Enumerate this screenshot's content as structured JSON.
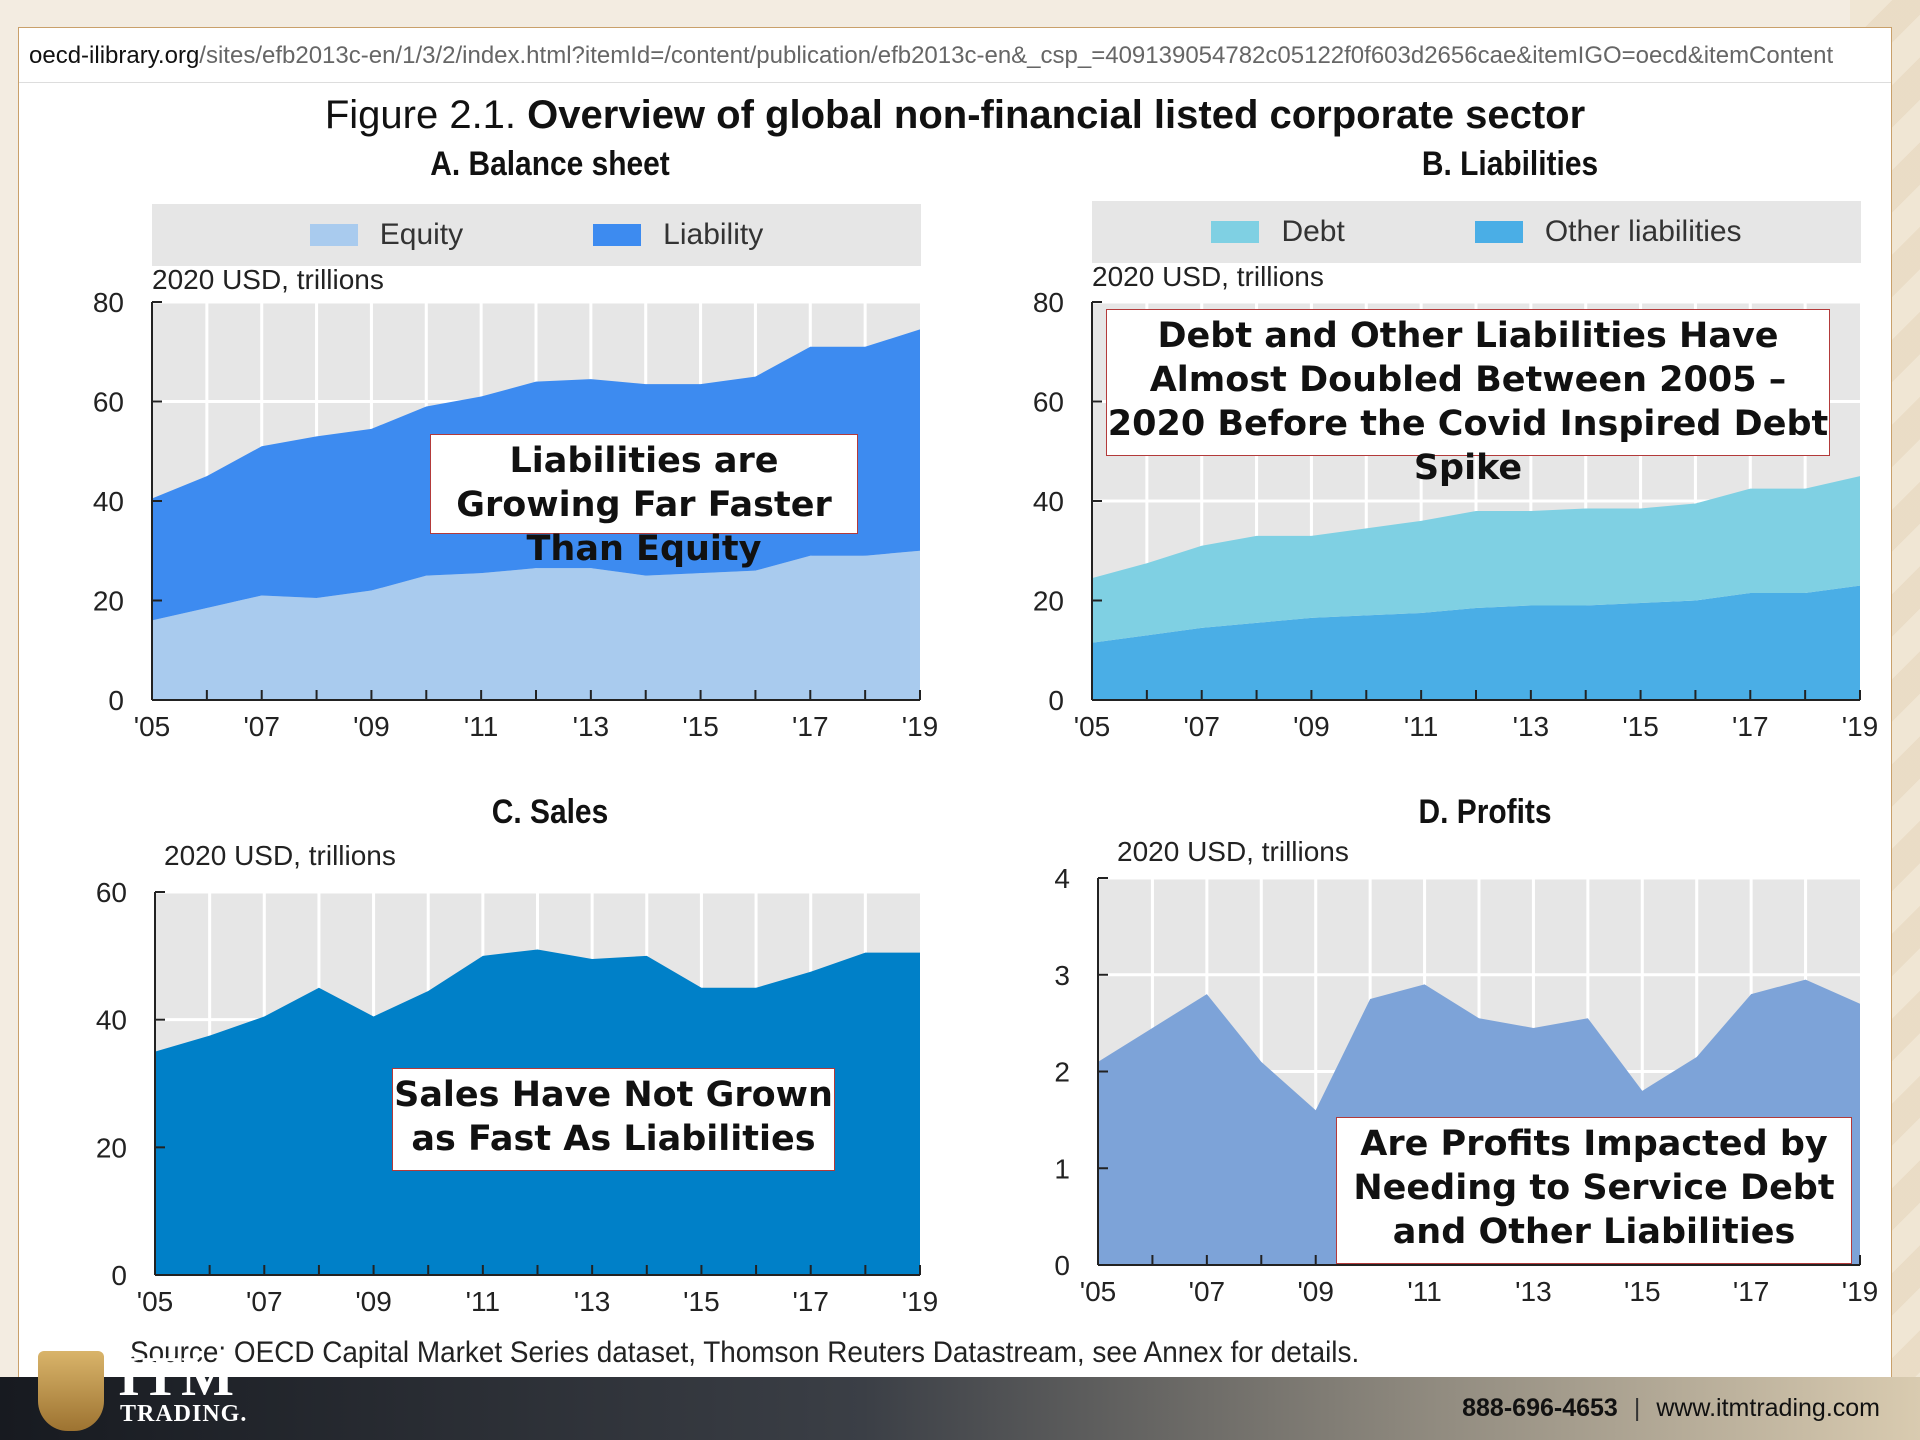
{
  "browser": {
    "url_host": "oecd-ilibrary.org",
    "url_path": "/sites/efb2013c-en/1/3/2/index.html?itemId=/content/publication/efb2013c-en&_csp_=409139054782c05122f0f603d2656cae&itemIGO=oecd&itemContent"
  },
  "figure": {
    "title_prefix": "Figure 2.1. ",
    "title_bold": "Overview of global non-financial listed corporate sector",
    "source": "Source: OECD Capital Market Series dataset, Thomson Reuters Datastream, see Annex for details."
  },
  "panels": {
    "a": {
      "title": "A. Balance sheet",
      "unit": "2020 USD, trillions",
      "legend": [
        {
          "label": "Equity",
          "color": "#a9cbee"
        },
        {
          "label": "Liability",
          "color": "#3d8bf0"
        }
      ],
      "callout": "Liabilities are Growing Far Faster Than Equity"
    },
    "b": {
      "title": "B. Liabilities",
      "unit": "2020 USD, trillions",
      "legend": [
        {
          "label": "Debt",
          "color": "#7fd0e3"
        },
        {
          "label": "Other liabilities",
          "color": "#4aaee6"
        }
      ],
      "callout": "Debt and Other Liabilities Have Almost Doubled Between 2005 – 2020 Before the Covid Inspired Debt Spike"
    },
    "c": {
      "title": "C. Sales",
      "unit": "2020 USD, trillions",
      "callout": "Sales Have Not Grown as Fast As Liabilities"
    },
    "d": {
      "title": "D. Profits",
      "unit": "2020 USD, trillions",
      "callout": "Are Profits Impacted by Needing to Service Debt and Other Liabilities"
    }
  },
  "chart_data": [
    {
      "id": "a",
      "type": "area",
      "stacked": true,
      "title": "A. Balance sheet",
      "ylabel": "2020 USD, trillions",
      "x": [
        2005,
        2006,
        2007,
        2008,
        2009,
        2010,
        2011,
        2012,
        2013,
        2014,
        2015,
        2016,
        2017,
        2018,
        2019
      ],
      "tick_labels": [
        "'05",
        "'07",
        "'09",
        "'11",
        "'13",
        "'15",
        "'17",
        "'19"
      ],
      "ylim": [
        0,
        80
      ],
      "yticks": [
        0,
        20,
        40,
        60,
        80
      ],
      "grid": true,
      "legend_position": "top",
      "series": [
        {
          "name": "Equity",
          "color": "#a9cbee",
          "values": [
            16,
            18.5,
            21,
            20.5,
            22,
            25,
            25.5,
            26.5,
            26.5,
            25,
            25.5,
            26,
            29,
            29,
            30
          ]
        },
        {
          "name": "Liability",
          "color": "#3d8bf0",
          "values": [
            24.5,
            26.5,
            30,
            32.5,
            32.5,
            34,
            35.5,
            37.5,
            38,
            38.5,
            38,
            39,
            42,
            42,
            44.5
          ]
        }
      ]
    },
    {
      "id": "b",
      "type": "area",
      "stacked": true,
      "title": "B. Liabilities",
      "ylabel": "2020 USD, trillions",
      "x": [
        2005,
        2006,
        2007,
        2008,
        2009,
        2010,
        2011,
        2012,
        2013,
        2014,
        2015,
        2016,
        2017,
        2018,
        2019
      ],
      "tick_labels": [
        "'05",
        "'07",
        "'09",
        "'11",
        "'13",
        "'15",
        "'17",
        "'19"
      ],
      "ylim": [
        0,
        80
      ],
      "yticks": [
        0,
        20,
        40,
        60,
        80
      ],
      "grid": true,
      "legend_position": "top",
      "series": [
        {
          "name": "Other liabilities",
          "color": "#4aaee6",
          "values": [
            11.5,
            13,
            14.5,
            15.5,
            16.5,
            17,
            17.5,
            18.5,
            19,
            19,
            19.5,
            20,
            21.5,
            21.5,
            23
          ]
        },
        {
          "name": "Debt",
          "color": "#7fd0e3",
          "values": [
            13,
            14.5,
            16.5,
            17.5,
            16.5,
            17.5,
            18.5,
            19.5,
            19,
            19.5,
            19,
            19.5,
            21,
            21,
            22
          ]
        }
      ]
    },
    {
      "id": "c",
      "type": "area",
      "title": "C. Sales",
      "ylabel": "2020 USD, trillions",
      "x": [
        2005,
        2006,
        2007,
        2008,
        2009,
        2010,
        2011,
        2012,
        2013,
        2014,
        2015,
        2016,
        2017,
        2018,
        2019
      ],
      "tick_labels": [
        "'05",
        "'07",
        "'09",
        "'11",
        "'13",
        "'15",
        "'17",
        "'19"
      ],
      "ylim": [
        0,
        60
      ],
      "yticks": [
        0,
        20,
        40,
        60
      ],
      "grid": true,
      "series": [
        {
          "color": "#0080c8",
          "values": [
            35,
            37.5,
            40.5,
            45,
            40.5,
            44.5,
            50,
            51,
            49.5,
            50,
            45,
            45,
            47.5,
            50.5,
            50.5
          ]
        }
      ]
    },
    {
      "id": "d",
      "type": "area",
      "title": "D. Profits",
      "ylabel": "2020 USD, trillions",
      "x": [
        2005,
        2006,
        2007,
        2008,
        2009,
        2010,
        2011,
        2012,
        2013,
        2014,
        2015,
        2016,
        2017,
        2018,
        2019
      ],
      "tick_labels": [
        "'05",
        "'07",
        "'09",
        "'11",
        "'13",
        "'15",
        "'17",
        "'19"
      ],
      "ylim": [
        0,
        4
      ],
      "yticks": [
        0,
        1,
        2,
        3,
        4
      ],
      "grid": true,
      "series": [
        {
          "color": "#7da3d8",
          "values": [
            2.1,
            2.45,
            2.8,
            2.1,
            1.6,
            2.75,
            2.9,
            2.55,
            2.45,
            2.55,
            1.8,
            2.15,
            2.8,
            2.95,
            2.7
          ]
        }
      ]
    }
  ],
  "footer": {
    "logo_main": "ITM",
    "logo_sub": "TRADING.",
    "phone": "888-696-4653",
    "separator": "|",
    "website": "www.itmtrading.com"
  }
}
